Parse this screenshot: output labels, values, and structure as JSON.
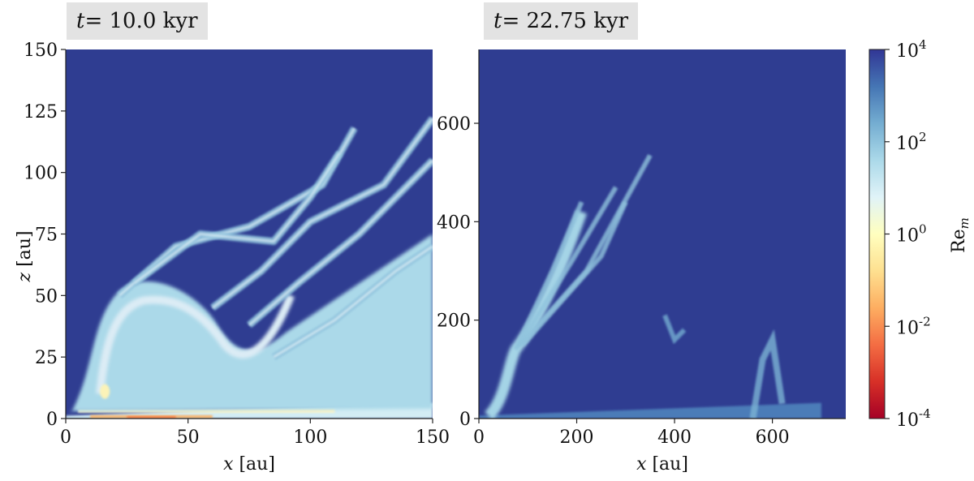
{
  "chart_data": [
    {
      "type": "heatmap",
      "title_prefix": "t",
      "title_value": "= 10.0 kyr",
      "xlabel_var": "x",
      "xlabel_unit": " [au]",
      "ylabel_var": "z",
      "ylabel_unit": " [au]",
      "xlim": [
        0,
        150
      ],
      "ylim": [
        0,
        150
      ],
      "xticks": [
        0,
        50,
        100,
        150
      ],
      "yticks": [
        0,
        25,
        50,
        75,
        100,
        125,
        150
      ],
      "features": [
        {
          "name": "disk-midplane",
          "x_end": 150,
          "z_thickness": 4,
          "log_re": 0.2
        },
        {
          "name": "cavity-lobe",
          "x_center": 38,
          "z_center": 30,
          "log_re": 1.6
        },
        {
          "name": "outflow-filaments",
          "x_range": [
            15,
            150
          ],
          "z_range": [
            10,
            125
          ],
          "log_re": 2.0
        }
      ]
    },
    {
      "type": "heatmap",
      "title_prefix": "t",
      "title_value": "= 22.75 kyr",
      "xlabel_var": "x",
      "xlabel_unit": " [au]",
      "xlim": [
        0,
        750
      ],
      "ylim": [
        0,
        750
      ],
      "xticks": [
        0,
        200,
        400,
        600
      ],
      "yticks": [
        0,
        200,
        400,
        600
      ],
      "features": [
        {
          "name": "disk-midplane",
          "x_end": 700,
          "z_thickness": 20,
          "log_re": 2.3
        },
        {
          "name": "outflow-jet",
          "x_range": [
            60,
            360
          ],
          "z_range": [
            100,
            540
          ],
          "log_re": 2.0
        }
      ]
    }
  ],
  "colorbar": {
    "label_base": "Re",
    "label_sub": "m",
    "scale": "log",
    "ticks": [
      {
        "base": "10",
        "exp": "4",
        "value": 4
      },
      {
        "base": "10",
        "exp": "2",
        "value": 2
      },
      {
        "base": "10",
        "exp": "0",
        "value": 0
      },
      {
        "base": "10",
        "exp": "-2",
        "value": -2
      },
      {
        "base": "10",
        "exp": "-4",
        "value": -4
      }
    ],
    "colors": [
      "#a50026",
      "#d73027",
      "#f46d43",
      "#fdae61",
      "#fee090",
      "#ffffbf",
      "#e0f3f8",
      "#abd9e9",
      "#74add1",
      "#4575b4",
      "#313695"
    ],
    "background": "#2f3d91"
  }
}
